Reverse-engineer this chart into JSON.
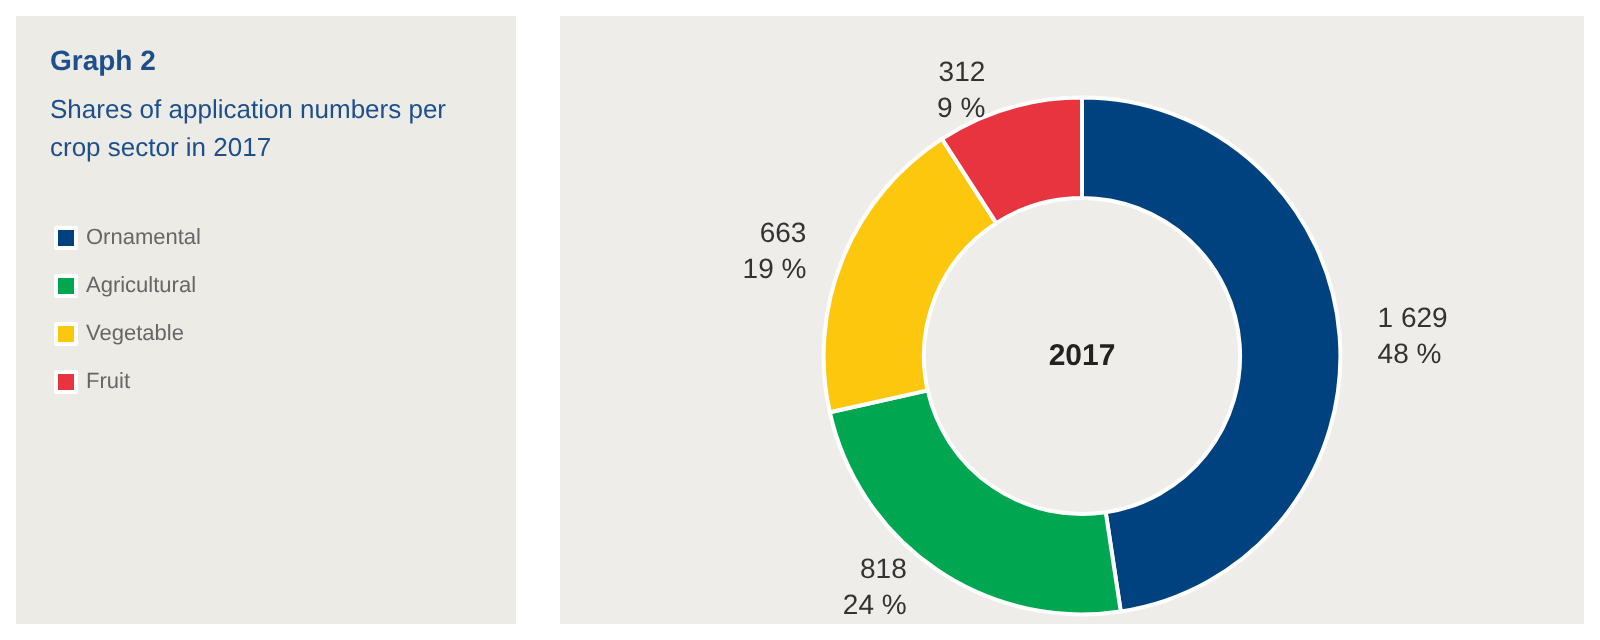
{
  "chart_data": {
    "type": "donut",
    "title": "Graph 2",
    "subtitle": "Shares of application numbers per crop sector in 2017",
    "categories": [
      "Ornamental",
      "Agricultural",
      "Vegetable",
      "Fruit"
    ],
    "values": [
      1629,
      818,
      663,
      312
    ],
    "colors": [
      "#00427f",
      "#00a650",
      "#fdc70d",
      "#e8343e"
    ],
    "value_labels": [
      "1 629\n48 %",
      "818\n24 %",
      "663\n19 %",
      "312\n9 %"
    ],
    "annotations": [
      "2017"
    ],
    "legend": "left"
  }
}
